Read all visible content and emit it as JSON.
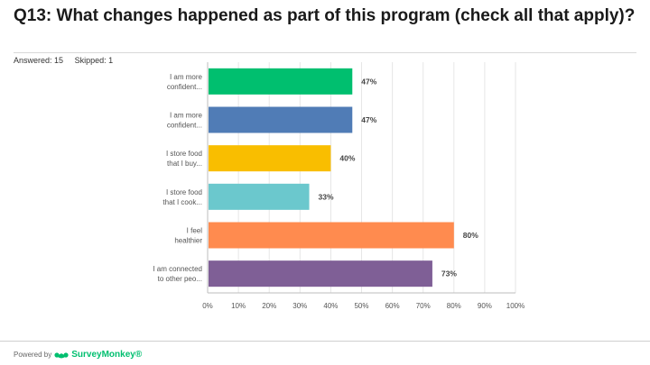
{
  "header": {
    "title": "Q13: What changes happened as part of this program (check all that apply)?",
    "answered": "Answered: 15",
    "skipped": "Skipped: 1"
  },
  "chart_data": {
    "type": "bar",
    "orientation": "horizontal",
    "categories": [
      [
        "I am more",
        "confident..."
      ],
      [
        "I am more",
        "confident..."
      ],
      [
        "I store food",
        "that I buy..."
      ],
      [
        "I store food",
        "that I cook..."
      ],
      [
        "I feel",
        "healthier"
      ],
      [
        "I am connected",
        "to other peo..."
      ]
    ],
    "values": [
      47,
      47,
      40,
      33,
      80,
      73
    ],
    "value_labels": [
      "47%",
      "47%",
      "40%",
      "33%",
      "80%",
      "73%"
    ],
    "colors": [
      "#00bf6f",
      "#507cb6",
      "#f9be00",
      "#6bc8cd",
      "#ff8b4f",
      "#7f5f96"
    ],
    "xlim": [
      0,
      100
    ],
    "ticks": [
      "0%",
      "10%",
      "20%",
      "30%",
      "40%",
      "50%",
      "60%",
      "70%",
      "80%",
      "90%",
      "100%"
    ],
    "grid": true,
    "legend": "none"
  },
  "footer": {
    "powered_by": "Powered by",
    "brand": "SurveyMonkey",
    "brand_suffix": "®",
    "brand_color": "#00bf6f"
  }
}
